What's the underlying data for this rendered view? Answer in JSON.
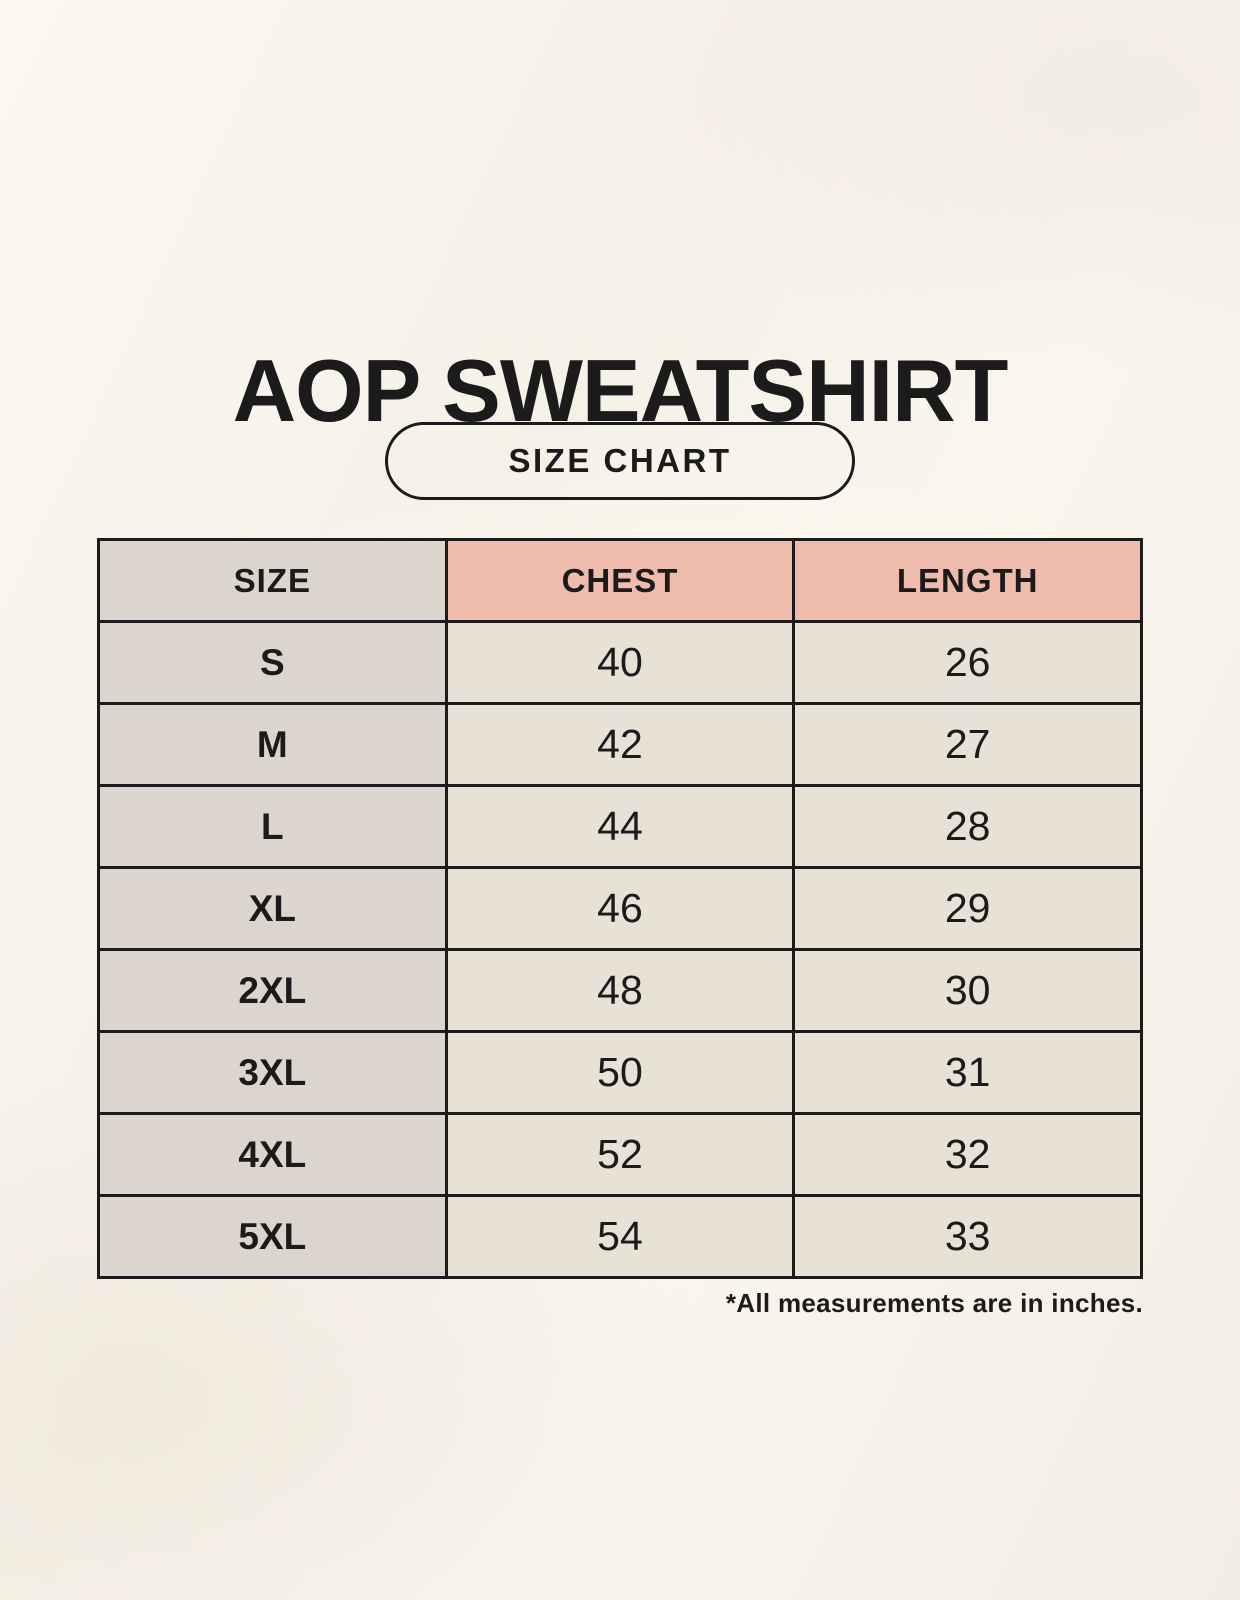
{
  "page": {
    "title": "AOP SWEATSHIRT",
    "badge": "SIZE CHART",
    "footnote": "*All measurements are in inches."
  },
  "colors": {
    "page_background": "#f8f4ec",
    "header_accent_pink": "#eebbac",
    "size_column_gray": "#dcd5ce",
    "data_cell_cream": "#e8e1d6",
    "border_black": "#1b1b1b",
    "text_black": "#1b1b1b"
  },
  "chart_data": {
    "type": "table",
    "title": "AOP SWEATSHIRT",
    "subtitle": "SIZE CHART",
    "columns": [
      "SIZE",
      "CHEST",
      "LENGTH"
    ],
    "rows": [
      [
        "S",
        "40",
        "26"
      ],
      [
        "M",
        "42",
        "27"
      ],
      [
        "L",
        "44",
        "28"
      ],
      [
        "XL",
        "46",
        "29"
      ],
      [
        "2XL",
        "48",
        "30"
      ],
      [
        "3XL",
        "50",
        "31"
      ],
      [
        "4XL",
        "52",
        "32"
      ],
      [
        "5XL",
        "54",
        "33"
      ]
    ],
    "units": "inches",
    "note": "*All measurements are in inches."
  }
}
